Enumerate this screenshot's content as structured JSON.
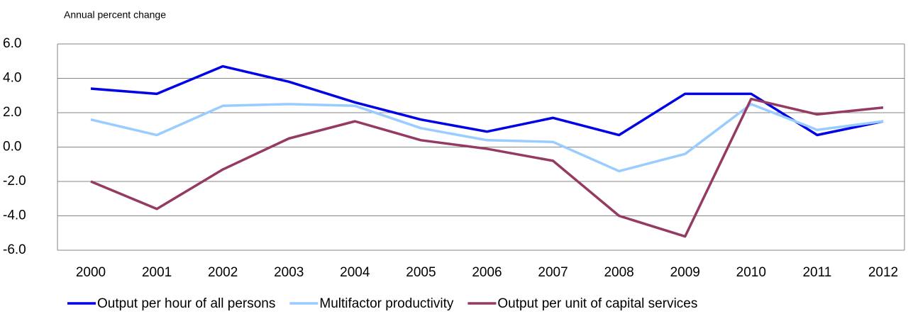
{
  "chart_data": {
    "type": "line",
    "y_axis_label": "Annual percent change",
    "categories": [
      "2000",
      "2001",
      "2002",
      "2003",
      "2004",
      "2005",
      "2006",
      "2007",
      "2008",
      "2009",
      "2010",
      "2011",
      "2012"
    ],
    "series": [
      {
        "name": "Output per hour of all persons",
        "color": "#0000e6",
        "values": [
          3.4,
          3.1,
          4.7,
          3.8,
          2.6,
          1.6,
          0.9,
          1.7,
          0.7,
          3.1,
          3.1,
          0.7,
          1.5
        ]
      },
      {
        "name": "Multifactor productivity",
        "color": "#99ccff",
        "values": [
          1.6,
          0.7,
          2.4,
          2.5,
          2.4,
          1.1,
          0.4,
          0.3,
          -1.4,
          -0.4,
          2.5,
          1.0,
          1.5
        ]
      },
      {
        "name": "Output per unit of capital services",
        "color": "#953a62",
        "values": [
          -2.0,
          -3.6,
          -1.3,
          0.5,
          1.5,
          0.4,
          -0.1,
          -0.8,
          -4.0,
          -5.2,
          2.8,
          1.9,
          2.3
        ]
      }
    ],
    "ylim": [
      -6,
      6
    ],
    "yticks": [
      {
        "value": -6,
        "label": "-6.0"
      },
      {
        "value": -4,
        "label": "-4.0"
      },
      {
        "value": -2,
        "label": "-2.0"
      },
      {
        "value": 0,
        "label": "0.0"
      },
      {
        "value": 2,
        "label": "2.0"
      },
      {
        "value": 4,
        "label": "4.0"
      },
      {
        "value": 6,
        "label": "6.0"
      }
    ],
    "grid": true,
    "legend": "bottom"
  }
}
